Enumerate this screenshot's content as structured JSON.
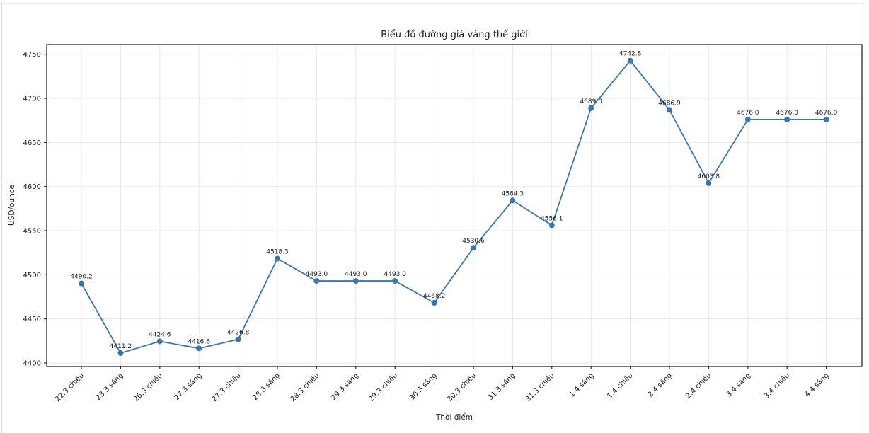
{
  "chart_data": {
    "type": "line",
    "title": "Biểu đồ đường giá vàng thế giới",
    "xlabel": "Thời điểm",
    "ylabel": "USD/ounce",
    "categories": [
      "22.3 chiều",
      "23.3 sáng",
      "26.3 chiều",
      "27.3 sáng",
      "27.3 chiều",
      "28.3 sáng",
      "28.3 chiều",
      "29.3 sáng",
      "29.3 chiều",
      "30.3 sáng",
      "30.3 chiều",
      "31.3 sáng",
      "31.3 chiều",
      "1.4 sáng",
      "1.4 chiều",
      "2.4 sáng",
      "2.4 chiều",
      "3.4 sáng",
      "3.4 chiều",
      "4.4 sáng"
    ],
    "values": [
      4490.2,
      4411.2,
      4424.6,
      4416.6,
      4426.8,
      4518.3,
      4493.0,
      4493.0,
      4493.0,
      4468.2,
      4530.6,
      4584.3,
      4556.1,
      4689.0,
      4742.8,
      4686.9,
      4603.8,
      4676.0,
      4676.0,
      4676.0
    ],
    "point_labels": [
      "4490.2",
      "4411.2",
      "4424.6",
      "4416.6",
      "4426.8",
      "4518.3",
      "4493.0",
      "4493.0",
      "4493.0",
      "4468.2",
      "4530.6",
      "4584.3",
      "4556.1",
      "4689.0",
      "4742.8",
      "4686.9",
      "4603.8",
      "4676.0",
      "4676.0",
      "4676.0"
    ],
    "yticks": [
      4400,
      4450,
      4500,
      4550,
      4600,
      4650,
      4700,
      4750
    ],
    "ylim": [
      4396,
      4761
    ],
    "grid": true,
    "legend_position": "none",
    "line_color": "#3b76af",
    "marker": "circle",
    "background_color": "#ffffff",
    "grid_color": "#e8e8e8",
    "spine_color": "#262626",
    "text_color": "#1c1c1c"
  }
}
